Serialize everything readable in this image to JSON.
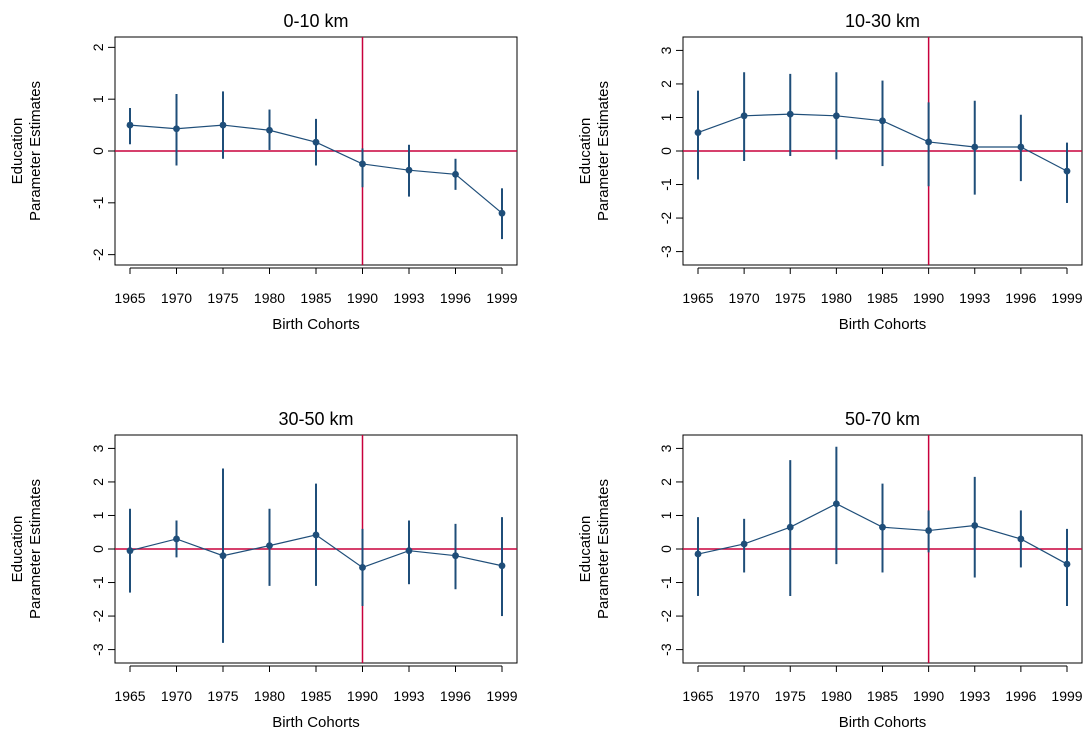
{
  "colors": {
    "series": "#1f4e79",
    "reference": "#c8003c",
    "axis": "#000000"
  },
  "chart_data": [
    {
      "type": "line",
      "title": "0-10 km",
      "xlabel": "Birth Cohorts",
      "ylabel": [
        "Education",
        "Parameter Estimates"
      ],
      "ylim": [
        -2.2,
        2.2
      ],
      "yticks": [
        -2,
        -1,
        0,
        1,
        2
      ],
      "x": [
        "1965",
        "1970",
        "1975",
        "1980",
        "1985",
        "1990",
        "1993",
        "1996",
        "1999"
      ],
      "y": [
        0.5,
        0.43,
        0.5,
        0.4,
        0.17,
        -0.25,
        -0.37,
        -0.45,
        -1.2
      ],
      "ci_low": [
        0.13,
        -0.28,
        -0.15,
        0.02,
        -0.28,
        -0.7,
        -0.88,
        -0.75,
        -1.7
      ],
      "ci_high": [
        0.83,
        1.1,
        1.15,
        0.8,
        0.62,
        0.05,
        0.12,
        -0.15,
        -0.72
      ],
      "reference_lines": {
        "h": 0,
        "v": "1990"
      }
    },
    {
      "type": "line",
      "title": "10-30 km",
      "xlabel": "Birth Cohorts",
      "ylabel": [
        "Education",
        "Parameter Estimates"
      ],
      "ylim": [
        -3.4,
        3.4
      ],
      "yticks": [
        -3,
        -2,
        -1,
        0,
        1,
        2,
        3
      ],
      "x": [
        "1965",
        "1970",
        "1975",
        "1980",
        "1985",
        "1990",
        "1993",
        "1996",
        "1999"
      ],
      "y": [
        0.55,
        1.05,
        1.1,
        1.05,
        0.9,
        0.27,
        0.12,
        0.12,
        -0.6
      ],
      "ci_low": [
        -0.85,
        -0.3,
        -0.15,
        -0.25,
        -0.45,
        -1.05,
        -1.3,
        -0.9,
        -1.55
      ],
      "ci_high": [
        1.8,
        2.35,
        2.3,
        2.35,
        2.1,
        1.45,
        1.5,
        1.08,
        0.25
      ],
      "reference_lines": {
        "h": 0,
        "v": "1990"
      }
    },
    {
      "type": "line",
      "title": "30-50 km",
      "xlabel": "Birth Cohorts",
      "ylabel": [
        "Education",
        "Parameter Estimates"
      ],
      "ylim": [
        -3.4,
        3.4
      ],
      "yticks": [
        -3,
        -2,
        -1,
        0,
        1,
        2,
        3
      ],
      "x": [
        "1965",
        "1970",
        "1975",
        "1980",
        "1985",
        "1990",
        "1993",
        "1996",
        "1999"
      ],
      "y": [
        -0.05,
        0.3,
        -0.2,
        0.1,
        0.42,
        -0.55,
        -0.05,
        -0.2,
        -0.5
      ],
      "ci_low": [
        -1.3,
        -0.25,
        -2.8,
        -1.1,
        -1.1,
        -1.7,
        -1.05,
        -1.2,
        -2.0
      ],
      "ci_high": [
        1.2,
        0.85,
        2.4,
        1.2,
        1.95,
        0.6,
        0.85,
        0.75,
        0.95
      ],
      "reference_lines": {
        "h": 0,
        "v": "1990"
      }
    },
    {
      "type": "line",
      "title": "50-70 km",
      "xlabel": "Birth Cohorts",
      "ylabel": [
        "Education",
        "Parameter Estimates"
      ],
      "ylim": [
        -3.4,
        3.4
      ],
      "yticks": [
        -3,
        -2,
        -1,
        0,
        1,
        2,
        3
      ],
      "x": [
        "1965",
        "1970",
        "1975",
        "1980",
        "1985",
        "1990",
        "1993",
        "1996",
        "1999"
      ],
      "y": [
        -0.15,
        0.15,
        0.65,
        1.35,
        0.65,
        0.55,
        0.7,
        0.3,
        -0.45
      ],
      "ci_low": [
        -1.4,
        -0.7,
        -1.4,
        -0.45,
        -0.7,
        -0.1,
        -0.85,
        -0.55,
        -1.7
      ],
      "ci_high": [
        0.95,
        0.9,
        2.65,
        3.05,
        1.95,
        1.15,
        2.15,
        1.15,
        0.6
      ],
      "reference_lines": {
        "h": 0,
        "v": "1990"
      }
    }
  ]
}
